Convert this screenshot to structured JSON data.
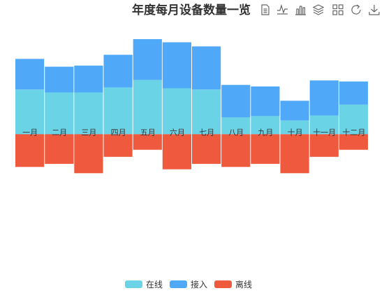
{
  "chart_data": {
    "type": "bar",
    "title": "年度每月设备数量一览",
    "categories": [
      "一月",
      "二月",
      "三月",
      "四月",
      "五月",
      "六月",
      "七月",
      "八月",
      "九月",
      "十月",
      "十一月",
      "十二月"
    ],
    "series": [
      {
        "name": "在线",
        "stack": "positive",
        "color": "#6bd3e6",
        "values": [
          172,
          161,
          161,
          180,
          209,
          177,
          172,
          65,
          70,
          53,
          72,
          114
        ]
      },
      {
        "name": "接入",
        "stack": "positive",
        "color": "#4fa8f8",
        "values": [
          118,
          99,
          103,
          126,
          157,
          177,
          166,
          125,
          114,
          76,
          135,
          89
        ]
      },
      {
        "name": "离线",
        "stack": "negative",
        "color": "#ef5a3f",
        "values": [
          -126,
          -114,
          -150,
          -87,
          -60,
          -135,
          -114,
          -126,
          -114,
          -150,
          -87,
          -60
        ]
      }
    ],
    "ylim": [
      -450,
      420
    ],
    "grid": false,
    "legend_position": "bottom-center"
  },
  "toolbox": {
    "icons": [
      "data-view-icon",
      "line-chart-icon",
      "bar-chart-icon",
      "stack-icon",
      "tiled-icon",
      "restore-icon",
      "save-image-icon"
    ]
  }
}
